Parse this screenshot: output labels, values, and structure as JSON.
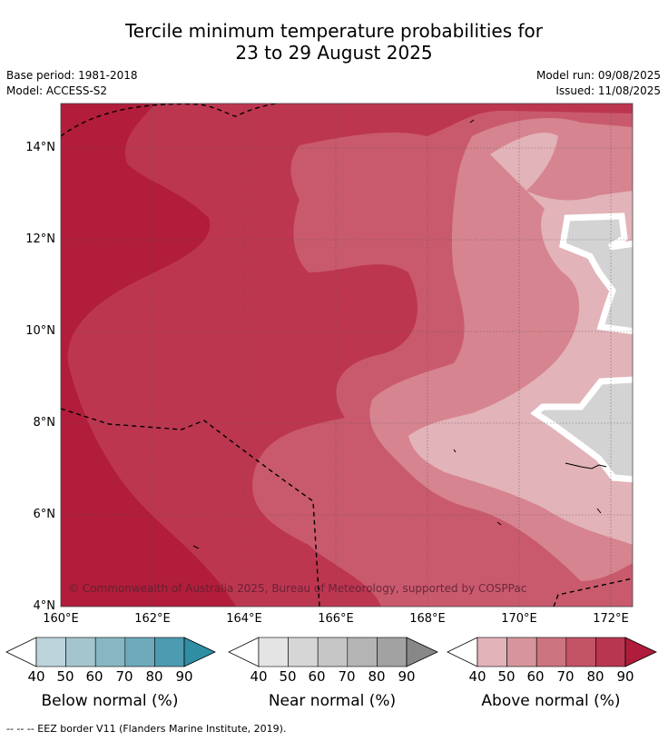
{
  "header": {
    "title_line1": "Tercile minimum temperature probabilities for",
    "title_line2": "23 to 29 August 2025",
    "base_period": "Base period: 1981-2018",
    "model": "Model: ACCESS-S2",
    "model_run": "Model run: 09/08/2025",
    "issued": "Issued: 11/08/2025"
  },
  "map": {
    "lat_labels": [
      "14°N",
      "12°N",
      "10°N",
      "8°N",
      "6°N",
      "4°N"
    ],
    "lon_labels": [
      "160°E",
      "162°E",
      "164°E",
      "166°E",
      "168°E",
      "170°E",
      "172°E"
    ],
    "copyright": "© Commonwealth of Australia 2025, Bureau of Meteorology, supported by COSPPac",
    "colors": {
      "above_90": "#b11d3a",
      "above_80": "#bd3650",
      "above_70": "#c95a6d",
      "above_60": "#d6848f",
      "above_50": "#e2b3b8",
      "near": "#d3d3d3"
    }
  },
  "legends": [
    {
      "title": "Below normal (%)",
      "ticks": [
        "40",
        "50",
        "60",
        "70",
        "80",
        "90"
      ],
      "colors": [
        "#bdd4dc",
        "#a4c5cd",
        "#88b7c3",
        "#6eaabb",
        "#4d9bb0",
        "#2f8ea4"
      ]
    },
    {
      "title": "Near normal (%)",
      "ticks": [
        "40",
        "50",
        "60",
        "70",
        "80",
        "90"
      ],
      "colors": [
        "#e4e4e4",
        "#d6d6d6",
        "#c6c6c6",
        "#b4b4b4",
        "#a2a2a2",
        "#878787"
      ]
    },
    {
      "title": "Above normal (%)",
      "ticks": [
        "40",
        "50",
        "60",
        "70",
        "80",
        "90"
      ],
      "colors": [
        "#e2b3b8",
        "#d6959c",
        "#cc7480",
        "#c25466",
        "#b93650",
        "#b01c3b"
      ]
    }
  ],
  "footnote": "--  --  -- EEZ border V11 (Flanders Marine Institute, 2019)."
}
